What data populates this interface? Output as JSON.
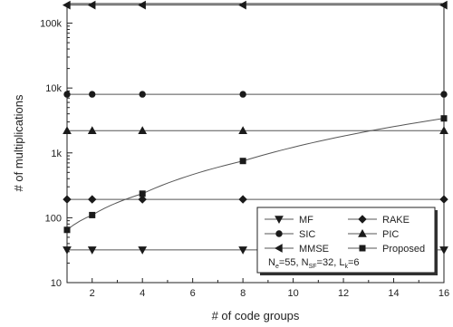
{
  "chart_data": {
    "type": "line",
    "xlabel": "# of code groups",
    "ylabel": "# of multiplications",
    "x_scale": "linear",
    "y_scale": "log",
    "xlim": [
      1,
      16
    ],
    "ylim": [
      10,
      200000
    ],
    "x_ticks": [
      2,
      4,
      6,
      8,
      10,
      12,
      14,
      16
    ],
    "x_tick_labels": [
      "2",
      "4",
      "6",
      "8",
      "10",
      "12",
      "14",
      "16"
    ],
    "y_ticks": [
      10,
      100,
      1000,
      10000,
      100000
    ],
    "y_tick_labels": [
      "10",
      "100",
      "1k",
      "10k",
      "100k"
    ],
    "x": [
      1,
      2,
      4,
      8,
      16
    ],
    "series": [
      {
        "name": "MF",
        "marker": "triangle-down",
        "values": [
          32,
          32,
          32,
          32,
          32
        ]
      },
      {
        "name": "RAKE",
        "marker": "diamond",
        "values": [
          192,
          192,
          192,
          192,
          192
        ]
      },
      {
        "name": "SIC",
        "marker": "circle",
        "values": [
          8000,
          8000,
          8000,
          8000,
          8000
        ]
      },
      {
        "name": "PIC",
        "marker": "triangle-up",
        "values": [
          2200,
          2200,
          2200,
          2200,
          2200
        ]
      },
      {
        "name": "MMSE",
        "marker": "triangle-left",
        "values": [
          190000,
          190000,
          190000,
          190000,
          190000
        ]
      },
      {
        "name": "Proposed",
        "marker": "square",
        "values": [
          65,
          110,
          235,
          750,
          3400
        ]
      }
    ],
    "legend_position": "bottom-right",
    "legend_columns": 2,
    "legend_note": {
      "parts": [
        {
          "base": "N",
          "sub": "e",
          "val": "=55, "
        },
        {
          "base": "N",
          "sub": "SF",
          "val": "=32, "
        },
        {
          "base": "L",
          "sub": "k",
          "val": "=6"
        }
      ]
    },
    "grid": false,
    "line_color": "#555555",
    "marker_color": "#1a1a1a"
  }
}
